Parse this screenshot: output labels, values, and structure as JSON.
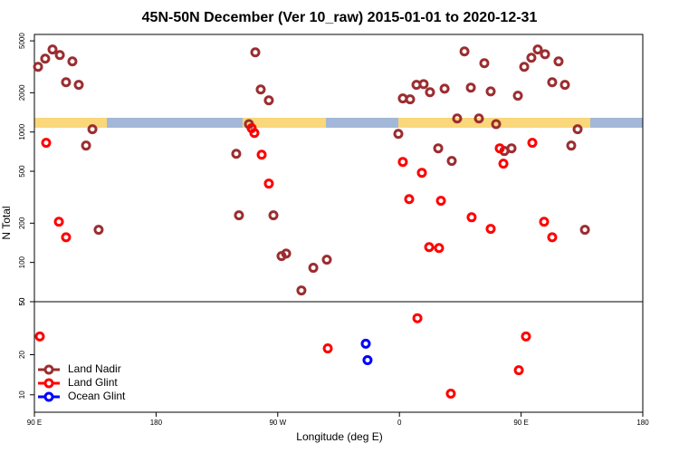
{
  "chart_data": {
    "type": "scatter",
    "title": "45N-50N December (Ver 10_raw)   2015-01-01 to 2020-12-31",
    "xlabel": "Longitude (deg E)",
    "ylabel": "N Total",
    "xlim": [
      90,
      540
    ],
    "xticks": [
      {
        "value": 90,
        "label": "90 E"
      },
      180,
      {
        "value": 270,
        "label": "90 W"
      },
      {
        "value": 360,
        "label": "0"
      },
      {
        "value": 450,
        "label": "90 E"
      },
      {
        "value": 540,
        "label": "180"
      }
    ],
    "ylog": true,
    "ylim": [
      50,
      5600
    ],
    "yticks": [
      50,
      100,
      200,
      500,
      1000,
      2000,
      5000
    ],
    "y2lim": [
      7.4,
      50
    ],
    "y2ticks": [
      10,
      20,
      50
    ],
    "legend": "lower left",
    "series": [
      {
        "name": "Land Nadir",
        "color": "#9b2d30",
        "x": [
          92.7,
          98,
          103.4,
          108.8,
          118.1,
          113.4,
          122.8,
          132.9,
          128.2,
          137.5,
          239.3,
          241.3,
          248.7,
          253.4,
          257.4,
          263.4,
          266.8,
          272.8,
          276.2,
          296.3,
          287.5,
          306.3,
          359.2,
          362.5,
          367.9,
          372.6,
          377.9,
          382.6,
          393.4,
          388.7,
          398.7,
          402.7,
          408.1,
          412.8,
          418.8,
          422.8,
          427.5,
          431.5,
          437.6,
          442.9,
          447.6,
          452.3,
          457.6,
          462.3,
          467.7,
          473,
          477.7,
          482.4,
          487.1,
          491.8,
          497.2
        ],
        "values": [
          3160,
          3650,
          4290,
          3890,
          3480,
          2410,
          2300,
          1050,
          787,
          178,
          681,
          230,
          1150,
          4080,
          2120,
          1750,
          230,
          112,
          117,
          91,
          61,
          105,
          968,
          1810,
          1780,
          2300,
          2330,
          2020,
          2150,
          750,
          600,
          1270,
          4150,
          2190,
          1270,
          3370,
          2050,
          1150,
          715,
          750,
          1900,
          3160,
          3710,
          4290,
          3950,
          2410,
          3480,
          2300,
          787,
          1050,
          178
        ]
      },
      {
        "name": "Land Glint",
        "color": "#ff0000",
        "x": [
          98.7,
          108.1,
          113.4,
          250.7,
          252.7,
          258.1,
          263.4,
          362.5,
          367.2,
          376.6,
          382,
          389.3,
          390.7,
          413.4,
          427.5,
          434.2,
          436.9,
          458.3,
          467,
          473,
          94,
          307,
          373.3,
          398,
          448.3,
          453.6
        ],
        "values": [
          826,
          205,
          156,
          1070,
          984,
          670,
          402,
          590,
          306,
          487,
          131,
          129,
          297,
          222,
          181,
          750,
          572,
          826,
          205,
          156,
          27.4,
          22.3,
          37.6,
          10.2,
          15.3,
          27.4
        ]
      },
      {
        "name": "Ocean Glint",
        "color": "#0000ff",
        "x": [
          335.1,
          336.4
        ],
        "values": [
          24.2,
          18.2
        ]
      }
    ]
  }
}
